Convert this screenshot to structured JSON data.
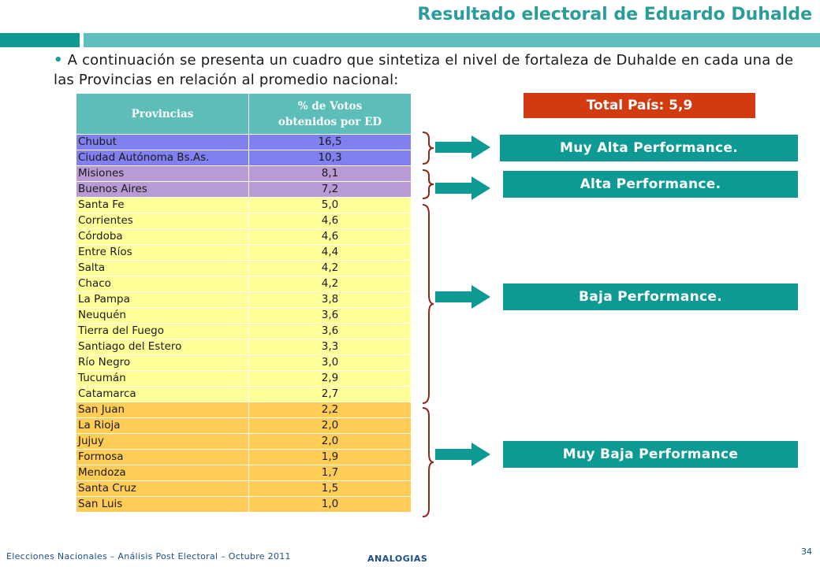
{
  "header": {
    "title": "Resultado electoral de Eduardo Duhalde"
  },
  "intro": {
    "bullet": "•",
    "text": "A continuación se presenta un cuadro que sintetiza el nivel de fortaleza de Duhalde en cada una de las Provincias en relación al promedio nacional:"
  },
  "table": {
    "col1_header": "Provincias",
    "col2_header": "% de Votos obtenidos por ED",
    "rows": [
      {
        "provincia": "Chubut",
        "valor": "16,5"
      },
      {
        "provincia": "Ciudad Autónoma Bs.As.",
        "valor": "10,3"
      },
      {
        "provincia": "Misiones",
        "valor": "8,1"
      },
      {
        "provincia": "Buenos Aires",
        "valor": "7,2"
      },
      {
        "provincia": "Santa Fe",
        "valor": "5,0"
      },
      {
        "provincia": "Corrientes",
        "valor": "4,6"
      },
      {
        "provincia": "Córdoba",
        "valor": "4,6"
      },
      {
        "provincia": "Entre Ríos",
        "valor": "4,4"
      },
      {
        "provincia": "Salta",
        "valor": "4,2"
      },
      {
        "provincia": "Chaco",
        "valor": "4,2"
      },
      {
        "provincia": "La Pampa",
        "valor": "3,8"
      },
      {
        "provincia": "Neuquén",
        "valor": "3,6"
      },
      {
        "provincia": "Tierra del Fuego",
        "valor": "3,6"
      },
      {
        "provincia": "Santiago del Estero",
        "valor": "3,3"
      },
      {
        "provincia": "Río Negro",
        "valor": "3,0"
      },
      {
        "provincia": "Tucumán",
        "valor": "2,9"
      },
      {
        "provincia": "Catamarca",
        "valor": "2,7"
      },
      {
        "provincia": "San Juan",
        "valor": "2,2"
      },
      {
        "provincia": "La Rioja",
        "valor": "2,0"
      },
      {
        "provincia": "Jujuy",
        "valor": "2,0"
      },
      {
        "provincia": "Formosa",
        "valor": "1,9"
      },
      {
        "provincia": "Mendoza",
        "valor": "1,7"
      },
      {
        "provincia": "Santa Cruz",
        "valor": "1,5"
      },
      {
        "provincia": "San Luis",
        "valor": "1,0"
      }
    ]
  },
  "summary": {
    "total_label": "Total País: 5,9",
    "muy_alta": "Muy Alta Performance.",
    "alta": "Alta Performance.",
    "baja": "Baja Performance.",
    "muy_baja": "Muy Baja Performance"
  },
  "footer": {
    "text": "Elecciones Nacionales – Análisis Post Electoral – Octubre 2011",
    "logo": "ANALOGIAS",
    "page": "34"
  },
  "colors": {
    "teal_dark": "#0d9a94",
    "teal_light": "#5cbdb9",
    "total_red": "#d23a10",
    "muy_alta_row": "#8080f0",
    "alta_row": "#b89ad4",
    "baja_row": "#ffff99",
    "muy_baja_row": "#ffcc55",
    "brace": "#8b2a1a"
  }
}
